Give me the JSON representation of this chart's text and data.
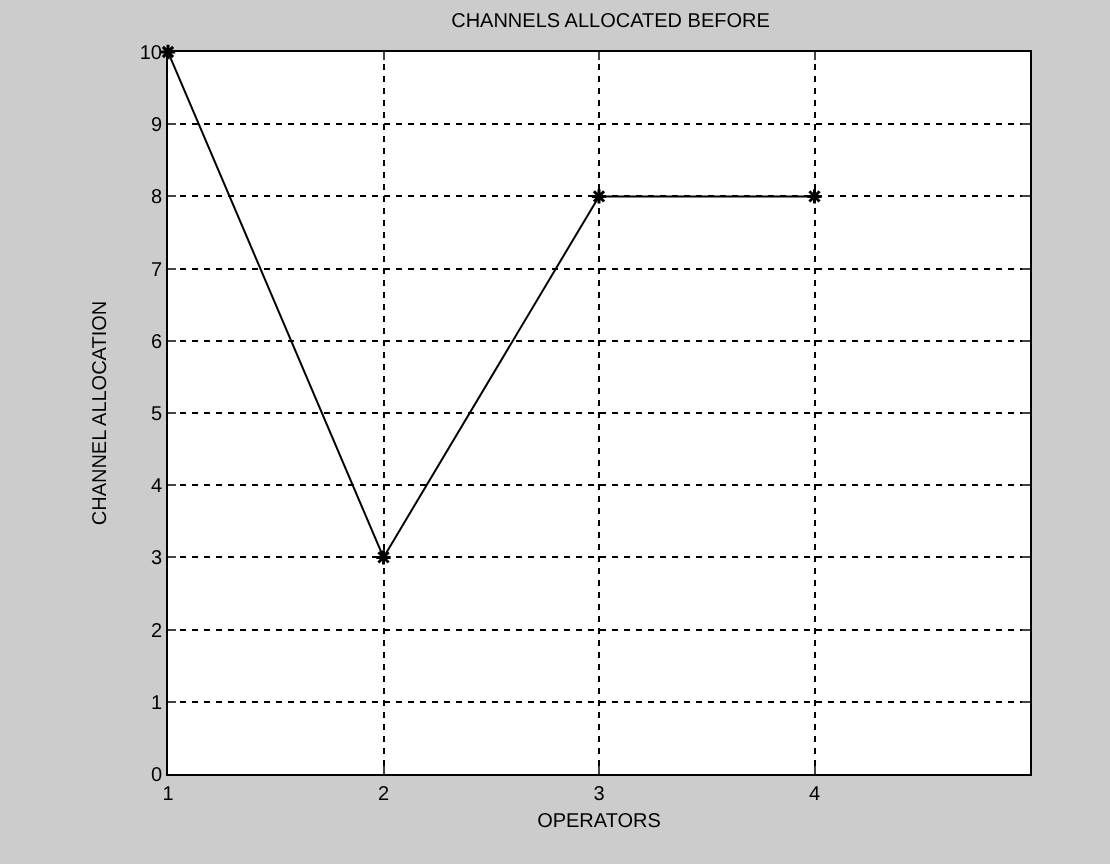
{
  "chart_data": {
    "type": "line",
    "title": "CHANNELS ALLOCATED BEFORE",
    "xlabel": "OPERATORS",
    "ylabel": "CHANNEL ALLOCATION",
    "x": [
      1,
      2,
      3,
      4
    ],
    "series": [
      {
        "color": "#000000",
        "values": [
          10,
          3,
          8,
          8
        ]
      }
    ],
    "xlim": [
      1,
      5
    ],
    "xticks": [
      1,
      2,
      3,
      4
    ],
    "ylim": [
      0,
      10
    ],
    "yticks": [
      0,
      1,
      2,
      3,
      4,
      5,
      6,
      7,
      8,
      9,
      10
    ],
    "grid": true,
    "legend": false,
    "marker": "cross",
    "line_style": "solid"
  }
}
